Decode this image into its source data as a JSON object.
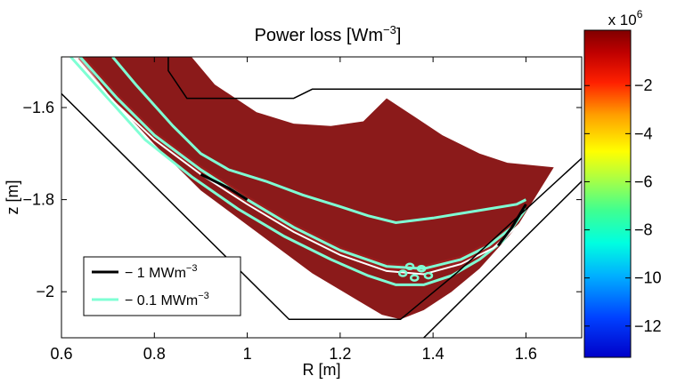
{
  "chart_data": {
    "type": "heatmap",
    "title": "Power loss [Wm",
    "title_sup": "−3",
    "title_suffix": "]",
    "xlabel": "R [m]",
    "ylabel": "z [m]",
    "xlim": [
      0.6,
      1.72
    ],
    "ylim": [
      -2.1,
      -1.49
    ],
    "xticks": [
      0.6,
      0.8,
      1.0,
      1.2,
      1.4,
      1.6
    ],
    "xtick_labels": [
      "0.6",
      "0.8",
      "1",
      "1.2",
      "1.4",
      "1.6"
    ],
    "yticks": [
      -1.6,
      -1.8,
      -2.0
    ],
    "ytick_labels": [
      "−1.6",
      "−1.8",
      "−2"
    ],
    "colorbar": {
      "range": [
        -13.3,
        0.3
      ],
      "scale_label": "x 10",
      "scale_exponent": "6",
      "ticks": [
        -2,
        -4,
        -6,
        -8,
        -10,
        -12
      ],
      "tick_labels": [
        "−2",
        "−4",
        "−6",
        "−8",
        "−10",
        "−12"
      ],
      "colormap": "jet"
    },
    "legend": {
      "placement": "bottom-left",
      "entries": [
        {
          "label": "− 1 MWm",
          "sup": "−3",
          "color": "#000000"
        },
        {
          "label": "− 0.1 MWm",
          "sup": "−3",
          "color": "#7fffd4"
        }
      ]
    },
    "colors": {
      "field": "#8b1a1a",
      "contour_small": "#7fffd4",
      "separatrix": "#ffffff",
      "wall": "#000000"
    },
    "wall_upper": [
      [
        0.83,
        -1.49
      ],
      [
        0.83,
        -1.52
      ],
      [
        0.87,
        -1.58
      ],
      [
        1.1,
        -1.58
      ],
      [
        1.14,
        -1.56
      ],
      [
        1.72,
        -1.56
      ]
    ],
    "wall_lower": [
      [
        0.6,
        -1.57
      ],
      [
        1.09,
        -2.06
      ],
      [
        1.33,
        -2.06
      ],
      [
        1.45,
        -1.96
      ],
      [
        1.72,
        -1.71
      ]
    ],
    "wall_lower_right": [
      [
        1.38,
        -2.1
      ],
      [
        1.72,
        -1.76
      ]
    ],
    "field_outline": [
      [
        0.6,
        -1.49
      ],
      [
        0.88,
        -1.49
      ],
      [
        0.93,
        -1.55
      ],
      [
        1.02,
        -1.61
      ],
      [
        1.1,
        -1.635
      ],
      [
        1.18,
        -1.64
      ],
      [
        1.25,
        -1.63
      ],
      [
        1.3,
        -1.58
      ],
      [
        1.36,
        -1.62
      ],
      [
        1.42,
        -1.66
      ],
      [
        1.5,
        -1.7
      ],
      [
        1.56,
        -1.72
      ],
      [
        1.66,
        -1.73
      ],
      [
        1.58,
        -1.86
      ],
      [
        1.5,
        -1.95
      ],
      [
        1.44,
        -2.0
      ],
      [
        1.38,
        -2.04
      ],
      [
        1.33,
        -2.06
      ],
      [
        1.29,
        -2.05
      ],
      [
        1.24,
        -2.02
      ],
      [
        1.14,
        -1.96
      ],
      [
        1.02,
        -1.87
      ],
      [
        0.9,
        -1.78
      ],
      [
        0.8,
        -1.68
      ],
      [
        0.7,
        -1.57
      ],
      [
        0.64,
        -1.49
      ]
    ],
    "contour_upper": [
      [
        0.71,
        -1.49
      ],
      [
        0.76,
        -1.55
      ],
      [
        0.84,
        -1.64
      ],
      [
        0.9,
        -1.7
      ],
      [
        0.96,
        -1.735
      ],
      [
        1.04,
        -1.76
      ],
      [
        1.12,
        -1.79
      ],
      [
        1.2,
        -1.815
      ],
      [
        1.26,
        -1.835
      ],
      [
        1.32,
        -1.85
      ],
      [
        1.36,
        -1.845
      ],
      [
        1.4,
        -1.84
      ],
      [
        1.46,
        -1.83
      ],
      [
        1.52,
        -1.82
      ],
      [
        1.58,
        -1.81
      ],
      [
        1.6,
        -1.8
      ]
    ],
    "contour_lower": [
      [
        0.62,
        -1.49
      ],
      [
        0.7,
        -1.58
      ],
      [
        0.78,
        -1.67
      ],
      [
        0.88,
        -1.75
      ],
      [
        0.98,
        -1.82
      ],
      [
        1.08,
        -1.88
      ],
      [
        1.18,
        -1.93
      ],
      [
        1.26,
        -1.965
      ],
      [
        1.32,
        -1.985
      ],
      [
        1.38,
        -1.985
      ],
      [
        1.44,
        -1.965
      ],
      [
        1.5,
        -1.93
      ],
      [
        1.55,
        -1.89
      ],
      [
        1.6,
        -1.82
      ]
    ],
    "contour_mid": [
      [
        0.64,
        -1.49
      ],
      [
        0.72,
        -1.58
      ],
      [
        0.8,
        -1.66
      ],
      [
        0.9,
        -1.735
      ],
      [
        1.0,
        -1.8
      ],
      [
        1.1,
        -1.86
      ],
      [
        1.2,
        -1.91
      ],
      [
        1.3,
        -1.945
      ],
      [
        1.38,
        -1.95
      ],
      [
        1.46,
        -1.93
      ],
      [
        1.52,
        -1.9
      ],
      [
        1.57,
        -1.86
      ]
    ],
    "separatrix_line": [
      [
        0.63,
        -1.49
      ],
      [
        0.71,
        -1.585
      ],
      [
        0.8,
        -1.67
      ],
      [
        0.9,
        -1.745
      ],
      [
        1.0,
        -1.81
      ],
      [
        1.1,
        -1.87
      ],
      [
        1.2,
        -1.92
      ],
      [
        1.3,
        -1.955
      ],
      [
        1.38,
        -1.962
      ],
      [
        1.46,
        -1.94
      ],
      [
        1.53,
        -1.905
      ],
      [
        1.59,
        -1.85
      ]
    ],
    "contour_black": [
      [
        0.9,
        -1.745
      ],
      [
        0.96,
        -1.775
      ],
      [
        1.0,
        -1.8
      ]
    ],
    "contour_black_right": [
      [
        1.54,
        -1.9
      ],
      [
        1.57,
        -1.86
      ],
      [
        1.6,
        -1.81
      ]
    ]
  }
}
